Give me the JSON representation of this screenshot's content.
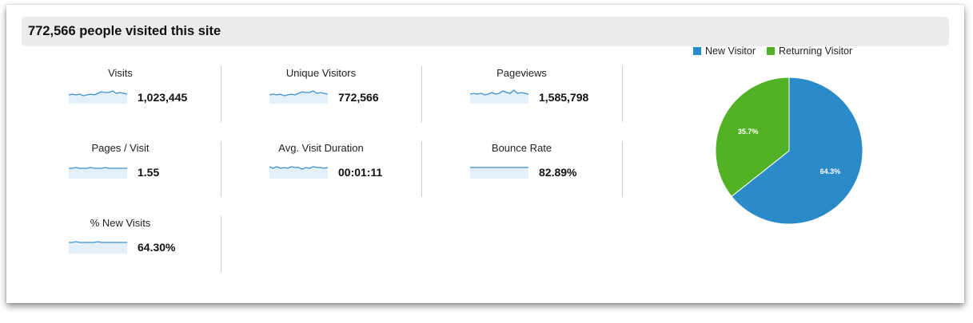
{
  "header": {
    "title": "772,566 people visited this site"
  },
  "metrics": [
    {
      "label": "Visits",
      "value": "1,023,445",
      "trend": [
        5,
        6,
        5,
        6,
        4,
        5,
        6,
        5,
        7,
        9,
        8,
        8,
        10,
        7,
        8,
        7,
        6
      ]
    },
    {
      "label": "Unique Visitors",
      "value": "772,566",
      "trend": [
        5,
        6,
        5,
        6,
        4,
        5,
        6,
        5,
        7,
        9,
        8,
        8,
        10,
        7,
        8,
        7,
        6
      ]
    },
    {
      "label": "Pageviews",
      "value": "1,585,798",
      "trend": [
        6,
        7,
        6,
        7,
        5,
        6,
        8,
        6,
        7,
        10,
        8,
        7,
        11,
        7,
        8,
        7,
        6
      ]
    },
    {
      "label": "Pages / Visit",
      "value": "1.55",
      "trend": [
        7,
        7,
        8,
        7,
        7,
        7,
        8,
        7,
        7,
        7,
        8,
        7,
        7,
        7,
        7,
        7,
        7
      ]
    },
    {
      "label": "Avg. Visit Duration",
      "value": "00:01:11",
      "trend": [
        9,
        7,
        9,
        7,
        8,
        7,
        9,
        8,
        8,
        6,
        8,
        7,
        9,
        8,
        8,
        7,
        8
      ]
    },
    {
      "label": "Bounce Rate",
      "value": "82.89%",
      "trend": [
        8,
        8,
        8,
        8,
        8,
        8,
        8,
        8,
        8,
        8,
        8,
        8,
        8,
        8,
        8,
        8,
        8
      ]
    },
    {
      "label": "% New Visits",
      "value": "64.30%",
      "trend": [
        8,
        8,
        9,
        8,
        8,
        8,
        8,
        8,
        9,
        8,
        8,
        8,
        8,
        8,
        8,
        8,
        8
      ]
    }
  ],
  "chart_data": {
    "type": "pie",
    "legend_position": "top",
    "series": [
      {
        "name": "New Visitor",
        "value": 64.3,
        "label": "64.3%",
        "color": "#2b8bc9"
      },
      {
        "name": "Returning Visitor",
        "value": 35.7,
        "label": "35.7%",
        "color": "#52b125"
      }
    ]
  },
  "colors": {
    "sparkline": "#3d8fd1",
    "sparkline_fill": "#e3f0fa"
  }
}
